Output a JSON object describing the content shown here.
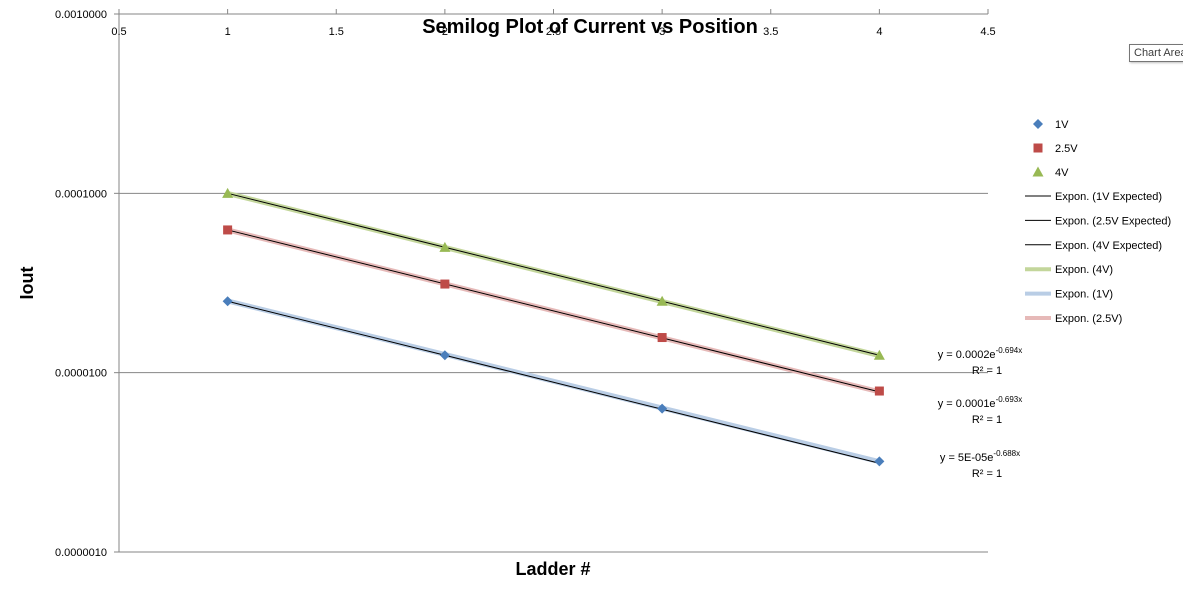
{
  "tooltip": "Chart Area",
  "chart_data": {
    "type": "scatter",
    "title": "Semilog Plot of Current vs Position",
    "xlabel": "Ladder #",
    "ylabel": "Iout",
    "xlim": [
      0.5,
      4.5
    ],
    "ylim": [
      1e-06,
      0.001
    ],
    "y_scale": "log",
    "x_ticks": [
      "0.5",
      "1",
      "1.5",
      "2",
      "2.5",
      "3",
      "3.5",
      "4",
      "4.5"
    ],
    "x_tick_values": [
      0.5,
      1,
      1.5,
      2,
      2.5,
      3,
      3.5,
      4,
      4.5
    ],
    "y_ticks": [
      "0.0010000",
      "0.0001000",
      "0.0000100",
      "0.0000010"
    ],
    "y_tick_values": [
      0.001,
      0.0001,
      1e-05,
      1e-06
    ],
    "x_axis_position": "top",
    "grid": "horizontal major",
    "legend_position": "right",
    "x": [
      1,
      2,
      3,
      4
    ],
    "series": [
      {
        "name": "1V",
        "marker": "diamond",
        "color": "#4a7ebb",
        "values": [
          2.5e-05,
          1.25e-05,
          6.3e-06,
          3.2e-06
        ]
      },
      {
        "name": "2.5V",
        "marker": "square",
        "color": "#be4b48",
        "values": [
          6.25e-05,
          3.12e-05,
          1.57e-05,
          7.9e-06
        ]
      },
      {
        "name": "4V",
        "marker": "triangle",
        "color": "#98b954",
        "values": [
          0.0001,
          5e-05,
          2.5e-05,
          1.25e-05
        ]
      }
    ],
    "fit_lines": [
      {
        "name": "Expon. (1V Expected)",
        "color": "#000000",
        "width": 1,
        "a": 5e-05,
        "k": -0.693
      },
      {
        "name": "Expon. (2.5V Expected)",
        "color": "#000000",
        "width": 1,
        "a": 0.000125,
        "k": -0.693
      },
      {
        "name": "Expon. (4V Expected)",
        "color": "#000000",
        "width": 1,
        "a": 0.0002,
        "k": -0.693
      },
      {
        "name": "Expon. (4V)",
        "color": "#c3d69b",
        "width": 5,
        "a": 0.0002,
        "k": -0.694
      },
      {
        "name": "Expon. (1V)",
        "color": "#b9cde5",
        "width": 5,
        "a": 5e-05,
        "k": -0.688
      },
      {
        "name": "Expon. (2.5V)",
        "color": "#e6b9b8",
        "width": 5,
        "a": 0.000125,
        "k": -0.693
      }
    ],
    "equations": [
      {
        "equation": "y = 0.0002e",
        "exponent": "-0.694x",
        "r2": "R² = 1"
      },
      {
        "equation": "y = 0.0001e",
        "exponent": "-0.693x",
        "r2": "R² = 1"
      },
      {
        "equation": "y = 5E-05e",
        "exponent": "-0.688x",
        "r2": "R² = 1"
      }
    ]
  }
}
